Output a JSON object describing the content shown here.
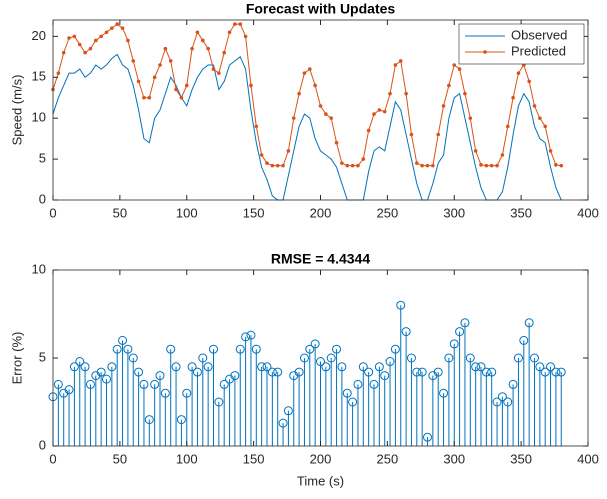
{
  "chart_data": [
    {
      "type": "line",
      "title": "Forecast with Updates",
      "ylabel": "Speed (m/s)",
      "x": [
        0,
        4,
        8,
        12,
        16,
        20,
        24,
        28,
        32,
        36,
        40,
        44,
        48,
        52,
        56,
        60,
        64,
        68,
        72,
        76,
        80,
        84,
        88,
        92,
        96,
        100,
        104,
        108,
        112,
        116,
        120,
        124,
        128,
        132,
        136,
        140,
        144,
        148,
        152,
        156,
        160,
        164,
        168,
        172,
        176,
        180,
        184,
        188,
        192,
        196,
        200,
        204,
        208,
        212,
        216,
        220,
        224,
        228,
        232,
        236,
        240,
        244,
        248,
        252,
        256,
        260,
        264,
        268,
        272,
        276,
        280,
        284,
        288,
        292,
        296,
        300,
        304,
        308,
        312,
        316,
        320,
        324,
        328,
        332,
        336,
        340,
        344,
        348,
        352,
        356,
        360,
        364,
        368,
        372,
        376,
        380
      ],
      "series": [
        {
          "name": "Observed",
          "color": "#0072bd",
          "marker": "none",
          "values": [
            10.5,
            12.5,
            14,
            15.5,
            15.5,
            16,
            15,
            15.5,
            16.5,
            16,
            16.5,
            17.3,
            17.8,
            16.5,
            16,
            14,
            11,
            7.5,
            7,
            10,
            11,
            13,
            15,
            14,
            12.5,
            11.5,
            13.5,
            15,
            16,
            16.5,
            16.5,
            13.5,
            14.5,
            16.5,
            17,
            17.5,
            16,
            11,
            7,
            4,
            2.5,
            0.5,
            0,
            0,
            3,
            6,
            9,
            10.5,
            10,
            7.5,
            6,
            5.5,
            5,
            4,
            2,
            0,
            0,
            0,
            0,
            3.5,
            6,
            6.5,
            6,
            9,
            12,
            11,
            8,
            5,
            2,
            0,
            0,
            2,
            4.5,
            5.5,
            10,
            12.5,
            13,
            10,
            7,
            4,
            1.5,
            0,
            0,
            0,
            1,
            4,
            8,
            11.5,
            13,
            12,
            9,
            7.5,
            7,
            4,
            1.5,
            0
          ]
        },
        {
          "name": "Predicted",
          "color": "#d95319",
          "marker": "dot",
          "values": [
            13.5,
            15.5,
            18,
            19.8,
            20,
            19,
            18,
            18.5,
            19.5,
            20,
            20.5,
            21,
            21.5,
            21,
            19.5,
            17,
            14.5,
            12.5,
            12.5,
            15,
            16.5,
            18.5,
            17,
            13.5,
            12.5,
            14,
            18.5,
            20.5,
            19.5,
            18.5,
            16,
            15.5,
            18,
            20.5,
            21.5,
            21.5,
            20,
            14,
            9,
            5.5,
            4.5,
            4.2,
            4.2,
            4.2,
            6,
            10,
            13,
            15.5,
            16,
            14,
            11.5,
            10.5,
            10,
            7,
            4.5,
            4.2,
            4.2,
            4.2,
            5,
            8.5,
            10.5,
            11,
            10.8,
            13,
            16.5,
            17,
            13,
            8,
            4.5,
            4.2,
            4.2,
            4.2,
            8,
            11.5,
            14,
            16.5,
            16,
            13,
            10,
            6,
            4.3,
            4.2,
            4.2,
            4.2,
            5.5,
            9,
            12.5,
            15.5,
            16.5,
            14.5,
            11.5,
            10,
            9,
            6,
            4.3,
            4.2
          ]
        }
      ],
      "xlim": [
        0,
        400
      ],
      "xticks": [
        0,
        50,
        100,
        150,
        200,
        250,
        300,
        350,
        400
      ],
      "ylim": [
        0,
        22
      ],
      "yticks": [
        0,
        5,
        10,
        15,
        20
      ],
      "legend": "northeast"
    },
    {
      "type": "stem",
      "title": "RMSE = 4.4344",
      "ylabel": "Error (%)",
      "xlabel": "Time (s)",
      "x": [
        0,
        4,
        8,
        12,
        16,
        20,
        24,
        28,
        32,
        36,
        40,
        44,
        48,
        52,
        56,
        60,
        64,
        68,
        72,
        76,
        80,
        84,
        88,
        92,
        96,
        100,
        104,
        108,
        112,
        116,
        120,
        124,
        128,
        132,
        136,
        140,
        144,
        148,
        152,
        156,
        160,
        164,
        168,
        172,
        176,
        180,
        184,
        188,
        192,
        196,
        200,
        204,
        208,
        212,
        216,
        220,
        224,
        228,
        232,
        236,
        240,
        244,
        248,
        252,
        256,
        260,
        264,
        268,
        272,
        276,
        280,
        284,
        288,
        292,
        296,
        300,
        304,
        308,
        312,
        316,
        320,
        324,
        328,
        332,
        336,
        340,
        344,
        348,
        352,
        356,
        360,
        364,
        368,
        372,
        376,
        380
      ],
      "color": "#0072bd",
      "values": [
        2.8,
        3.5,
        3,
        3.2,
        4.5,
        4.8,
        4.5,
        3.5,
        4,
        4.2,
        3.8,
        4.5,
        5.5,
        6,
        5.5,
        5,
        4.2,
        3.5,
        1.5,
        3.5,
        4,
        3,
        5.5,
        4.5,
        1.5,
        3,
        4.5,
        4.2,
        5,
        4.5,
        5.5,
        2.5,
        3.5,
        3.8,
        4,
        5.5,
        6.2,
        6.3,
        5.5,
        4.5,
        4.5,
        4.2,
        4.2,
        1.3,
        2,
        4,
        4.2,
        5,
        5.5,
        5.8,
        4.8,
        4.5,
        5,
        5.5,
        4.5,
        3,
        2.5,
        3.5,
        4.5,
        4.2,
        3.5,
        4.5,
        4,
        4.8,
        5.5,
        8,
        6.5,
        5,
        4.2,
        4.2,
        0.5,
        4,
        4.2,
        3,
        5,
        5.8,
        6.5,
        7,
        5,
        4.5,
        4.5,
        4.2,
        4.2,
        2.5,
        2.8,
        2.5,
        3.5,
        5,
        6,
        7,
        5,
        4.5,
        4.2,
        4.5,
        4.2,
        4.2
      ],
      "xlim": [
        0,
        400
      ],
      "xticks": [
        0,
        50,
        100,
        150,
        200,
        250,
        300,
        350,
        400
      ],
      "ylim": [
        0,
        10
      ],
      "yticks": [
        0,
        5,
        10
      ]
    }
  ]
}
